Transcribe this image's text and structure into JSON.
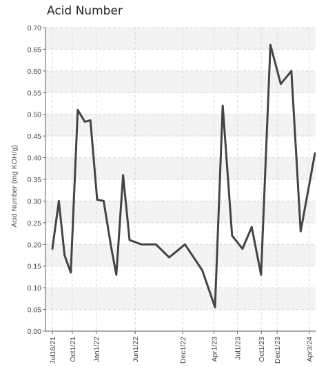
{
  "chart_data": {
    "type": "line",
    "title": "Acid Number",
    "ylabel": "Acid Number (mg KOH/g)",
    "xlabel": "",
    "ylim": [
      0,
      0.7
    ],
    "y_ticks": [
      "0.00",
      "0.05",
      "0.10",
      "0.15",
      "0.20",
      "0.25",
      "0.30",
      "0.35",
      "0.40",
      "0.45",
      "0.50",
      "0.55",
      "0.60",
      "0.65",
      "0.70"
    ],
    "x_ticks": [
      "Jul16/21",
      "Oct1/21",
      "Jan1/22",
      "Jun1/22",
      "Dec1/22",
      "Apr1/23",
      "Jul1/23",
      "Oct1/23",
      "Dec1/23",
      "Apr3/24"
    ],
    "grid": true,
    "series": [
      {
        "color": "#444444",
        "points": [
          {
            "x": "2021-07-16",
            "y": 0.19
          },
          {
            "x": "2021-08-10",
            "y": 0.3
          },
          {
            "x": "2021-09-01",
            "y": 0.175
          },
          {
            "x": "2021-09-25",
            "y": 0.135
          },
          {
            "x": "2021-10-22",
            "y": 0.51
          },
          {
            "x": "2021-11-18",
            "y": 0.483
          },
          {
            "x": "2021-12-10",
            "y": 0.486
          },
          {
            "x": "2022-01-05",
            "y": 0.303
          },
          {
            "x": "2022-01-30",
            "y": 0.3
          },
          {
            "x": "2022-03-01",
            "y": 0.19
          },
          {
            "x": "2022-03-20",
            "y": 0.13
          },
          {
            "x": "2022-04-15",
            "y": 0.36
          },
          {
            "x": "2022-05-10",
            "y": 0.21
          },
          {
            "x": "2022-06-25",
            "y": 0.2
          },
          {
            "x": "2022-08-20",
            "y": 0.2
          },
          {
            "x": "2022-10-10",
            "y": 0.17
          },
          {
            "x": "2022-12-10",
            "y": 0.2
          },
          {
            "x": "2023-02-15",
            "y": 0.14
          },
          {
            "x": "2023-04-05",
            "y": 0.055
          },
          {
            "x": "2023-05-05",
            "y": 0.52
          },
          {
            "x": "2023-06-10",
            "y": 0.22
          },
          {
            "x": "2023-07-20",
            "y": 0.19
          },
          {
            "x": "2023-08-25",
            "y": 0.24
          },
          {
            "x": "2023-09-30",
            "y": 0.13
          },
          {
            "x": "2023-11-05",
            "y": 0.66
          },
          {
            "x": "2023-12-15",
            "y": 0.57
          },
          {
            "x": "2024-01-25",
            "y": 0.6
          },
          {
            "x": "2024-03-01",
            "y": 0.23
          },
          {
            "x": "2024-04-25",
            "y": 0.41
          }
        ]
      }
    ]
  }
}
